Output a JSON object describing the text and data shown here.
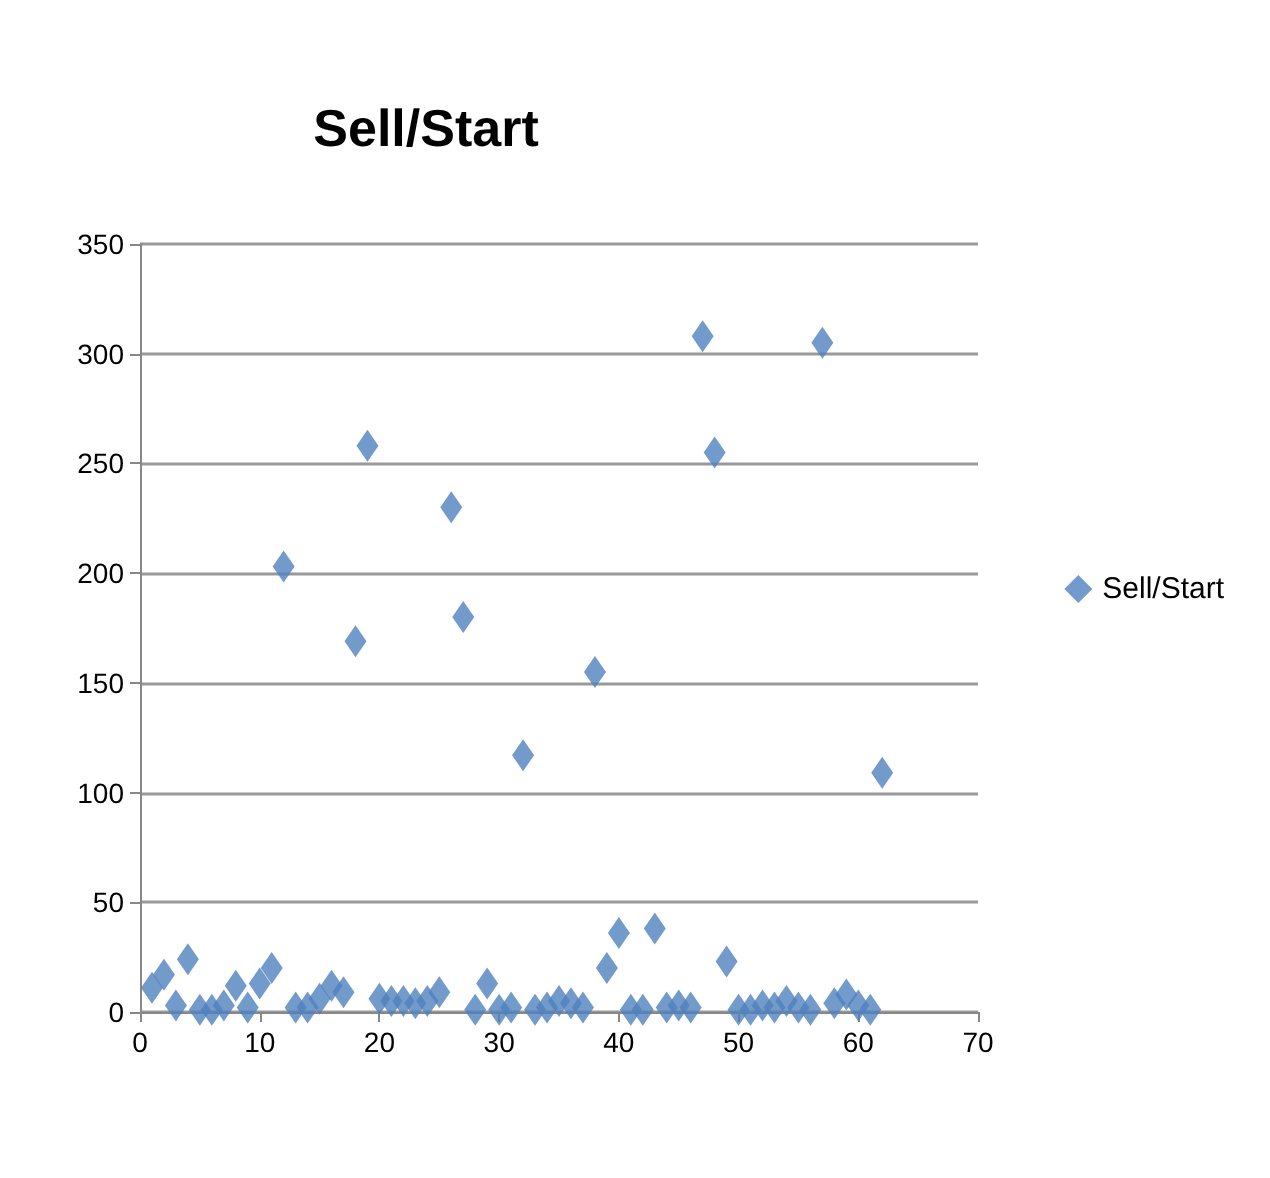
{
  "chart_data": {
    "type": "scatter",
    "title": "Sell/Start",
    "x": [
      1,
      2,
      3,
      4,
      5,
      6,
      7,
      8,
      9,
      10,
      11,
      12,
      13,
      14,
      15,
      16,
      17,
      18,
      19,
      20,
      21,
      22,
      23,
      24,
      25,
      26,
      27,
      28,
      29,
      30,
      31,
      32,
      33,
      34,
      35,
      36,
      37,
      38,
      39,
      40,
      41,
      42,
      43,
      44,
      45,
      46,
      47,
      48,
      49,
      50,
      51,
      52,
      53,
      54,
      55,
      56,
      57,
      58,
      59,
      60,
      61,
      62
    ],
    "series": [
      {
        "name": "Sell/Start",
        "color": "#4f81bd",
        "values": [
          11,
          17,
          3,
          24,
          1,
          1,
          3,
          12,
          2,
          13,
          20,
          203,
          2,
          2,
          6,
          12,
          9,
          169,
          258,
          6,
          5,
          5,
          4,
          5,
          9,
          230,
          180,
          1,
          13,
          1,
          2,
          117,
          1,
          2,
          5,
          4,
          2,
          155,
          20,
          36,
          1,
          1,
          38,
          2,
          3,
          2,
          308,
          255,
          23,
          1,
          1,
          3,
          2,
          5,
          2,
          1,
          305,
          4,
          8,
          3,
          1,
          109
        ]
      }
    ],
    "xlim": [
      0,
      70
    ],
    "xticks": [
      0,
      10,
      20,
      30,
      40,
      50,
      60,
      70
    ],
    "ylim": [
      0,
      350
    ],
    "yticks": [
      0,
      50,
      100,
      150,
      200,
      250,
      300,
      350
    ],
    "grid": "y",
    "legend": "right",
    "marker": "diamond"
  }
}
